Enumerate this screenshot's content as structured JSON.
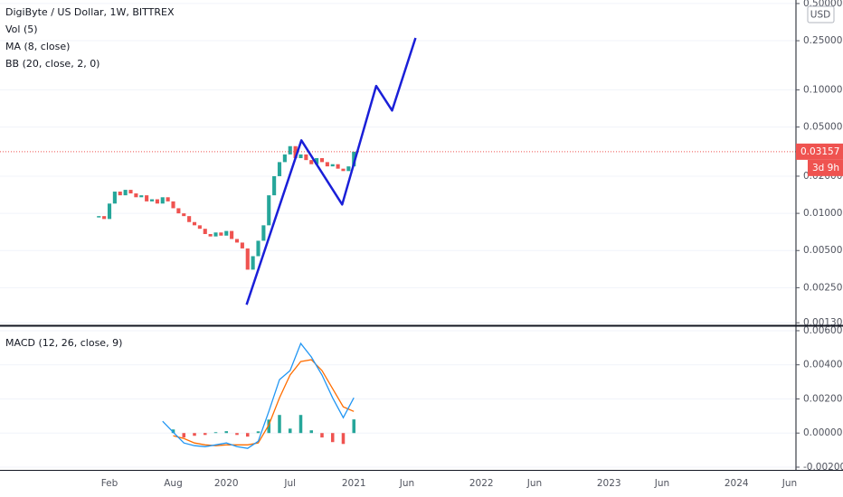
{
  "chart_data": [
    {
      "type": "candlestick",
      "title": "DigiByte / US Dollar, 1W, BITTREX",
      "indicators": [
        "Vol (5)",
        "MA (8, close)",
        "BB (20, close, 2, 0)"
      ],
      "currency": "USD",
      "countdown": "3d 9h",
      "log_scale": true,
      "grid": true,
      "up_color": "#26a69a",
      "down_color": "#ef5350",
      "x": [
        0,
        0.5,
        1,
        1.5,
        2,
        2.5,
        3,
        3.5,
        4,
        4.5,
        5,
        5.5,
        6,
        6.5,
        7,
        7.5,
        8,
        8.5,
        9,
        9.5,
        10,
        10.5,
        11,
        11.5,
        12,
        12.5,
        13,
        13.5,
        14,
        14.5,
        15,
        15.5,
        16,
        16.5,
        17,
        17.5,
        18,
        18.5,
        19,
        19.5,
        20,
        20.5,
        21,
        21.5,
        22,
        22.5,
        23,
        23.5,
        24
      ],
      "values": [
        0.0095,
        0.009,
        0.012,
        0.015,
        0.014,
        0.0155,
        0.0145,
        0.0135,
        0.014,
        0.0125,
        0.013,
        0.012,
        0.0135,
        0.0125,
        0.011,
        0.01,
        0.0095,
        0.0085,
        0.008,
        0.0075,
        0.0068,
        0.0065,
        0.007,
        0.0066,
        0.0072,
        0.0062,
        0.0058,
        0.0052,
        0.0035,
        0.0045,
        0.006,
        0.008,
        0.014,
        0.02,
        0.026,
        0.03,
        0.035,
        0.028,
        0.03,
        0.027,
        0.025,
        0.028,
        0.026,
        0.024,
        0.025,
        0.023,
        0.022,
        0.024,
        0.03157
      ],
      "drawing": {
        "x": [
          13.9,
          19.06,
          22.9,
          26.1,
          27.6,
          29.8
        ],
        "values": [
          0.00182,
          0.039,
          0.0118,
          0.1075,
          0.068,
          0.263
        ],
        "color": "#1a1fd8"
      },
      "xlim": [
        -9.3,
        65.6
      ],
      "xticks": [
        {
          "value": 1,
          "label": "Feb"
        },
        {
          "value": 7,
          "label": "Aug"
        },
        {
          "value": 12,
          "label": "2020"
        },
        {
          "value": 18,
          "label": "Jul"
        },
        {
          "value": 24,
          "label": "2021"
        },
        {
          "value": 29,
          "label": "Jun"
        },
        {
          "value": 36,
          "label": "2022"
        },
        {
          "value": 41,
          "label": "Jun"
        },
        {
          "value": 48,
          "label": "2023"
        },
        {
          "value": 53,
          "label": "Jun"
        },
        {
          "value": 60,
          "label": "2024"
        },
        {
          "value": 65,
          "label": "Jun"
        }
      ],
      "ylim": [
        0.00124,
        0.534
      ],
      "yticks": [
        {
          "value": 0.5,
          "label": "0.50000"
        },
        {
          "value": 0.25,
          "label": "0.25000"
        },
        {
          "value": 0.1,
          "label": "0.10000"
        },
        {
          "value": 0.05,
          "label": "0.05000"
        },
        {
          "value": 0.02,
          "label": "0.02000"
        },
        {
          "value": 0.01,
          "label": "0.01000"
        },
        {
          "value": 0.005,
          "label": "0.00500"
        },
        {
          "value": 0.0025,
          "label": "0.00250"
        },
        {
          "value": 0.0013,
          "label": "0.00130"
        }
      ]
    },
    {
      "type": "macd",
      "title": "MACD (12, 26, close, 9)",
      "grid": true,
      "x": [
        6,
        7,
        8,
        9,
        10,
        11,
        12,
        13,
        14,
        15,
        16,
        17,
        18,
        19,
        20,
        21,
        22,
        23,
        24
      ],
      "macd": {
        "color": "#2196f3",
        "values": [
          0.00069,
          5e-05,
          -0.00058,
          -0.00074,
          -0.0008,
          -0.00069,
          -0.00058,
          -0.0008,
          -0.0009,
          -0.00048,
          0.00127,
          0.00313,
          0.00366,
          0.00525,
          0.00446,
          0.0034,
          0.00207,
          0.0009,
          0.00207
        ]
      },
      "signal": {
        "color": "#ff6d00",
        "values": [
          null,
          -0.00016,
          -0.00032,
          -0.00058,
          -0.00069,
          -0.00074,
          -0.00069,
          -0.00069,
          -0.00069,
          -0.00058,
          0.00048,
          0.00207,
          0.0034,
          0.00419,
          0.0043,
          0.00366,
          0.0026,
          0.00154,
          0.00127
        ]
      },
      "histogram": {
        "up_color": "#26a69a",
        "down_color": "#ef5350",
        "values": [
          null,
          0.00021,
          -0.00026,
          -0.00016,
          -0.00011,
          5e-05,
          0.00011,
          -0.00011,
          -0.00021,
          0.0001,
          0.00079,
          0.00106,
          0.00026,
          0.00106,
          0.00016,
          -0.00026,
          -0.00053,
          -0.00064,
          0.0008
        ]
      },
      "ylim": [
        -0.00216,
        0.00621
      ],
      "yticks": [
        {
          "value": 0.006,
          "label": "0.00600"
        },
        {
          "value": 0.004,
          "label": "0.00400"
        },
        {
          "value": 0.002,
          "label": "0.00200"
        },
        {
          "value": 0,
          "label": "0.00000"
        },
        {
          "value": -0.002,
          "label": "-0.00200"
        }
      ]
    }
  ]
}
